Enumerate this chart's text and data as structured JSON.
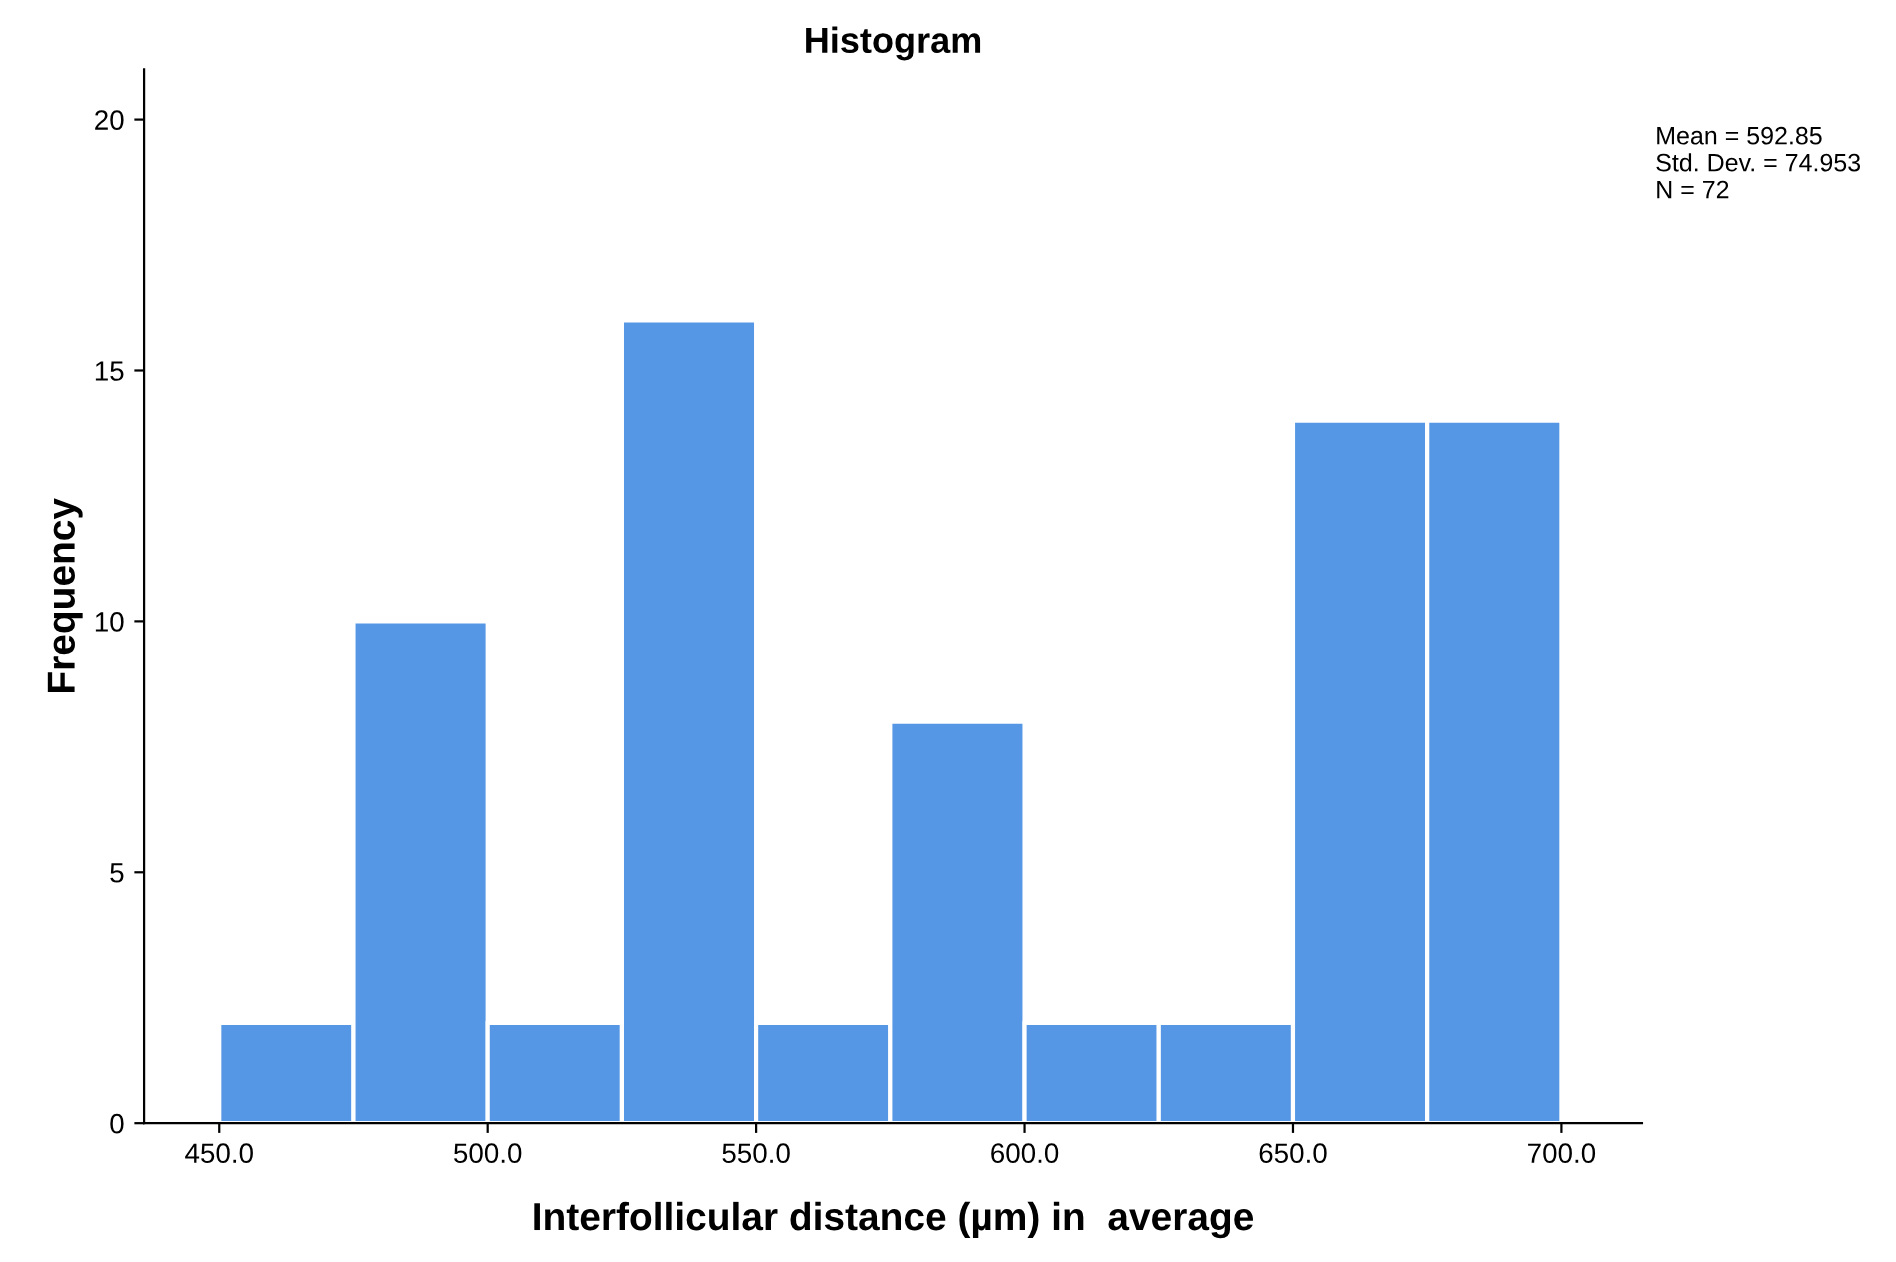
{
  "chart_data": {
    "type": "histogram",
    "title": "Histogram",
    "xlabel": "Interfollicular distance (µm) in  average",
    "ylabel": "Frequency",
    "bins": [
      450,
      475,
      500,
      525,
      550,
      575,
      600,
      625,
      650,
      675,
      700
    ],
    "values": [
      2,
      10,
      2,
      16,
      2,
      8,
      2,
      2,
      14,
      14
    ],
    "color": "#5597e4",
    "xlim": [
      436,
      715
    ],
    "ylim": [
      0,
      21
    ],
    "xticks": [
      {
        "value": 450,
        "label": "450.0"
      },
      {
        "value": 500,
        "label": "500.0"
      },
      {
        "value": 550,
        "label": "550.0"
      },
      {
        "value": 600,
        "label": "600.0"
      },
      {
        "value": 650,
        "label": "650.0"
      },
      {
        "value": 700,
        "label": "700.0"
      }
    ],
    "yticks": [
      0,
      5,
      10,
      15,
      20
    ],
    "grid": false,
    "annotations": [
      "Mean = 592.85\nStd. Dev. = 74.953\nN = 72"
    ]
  }
}
